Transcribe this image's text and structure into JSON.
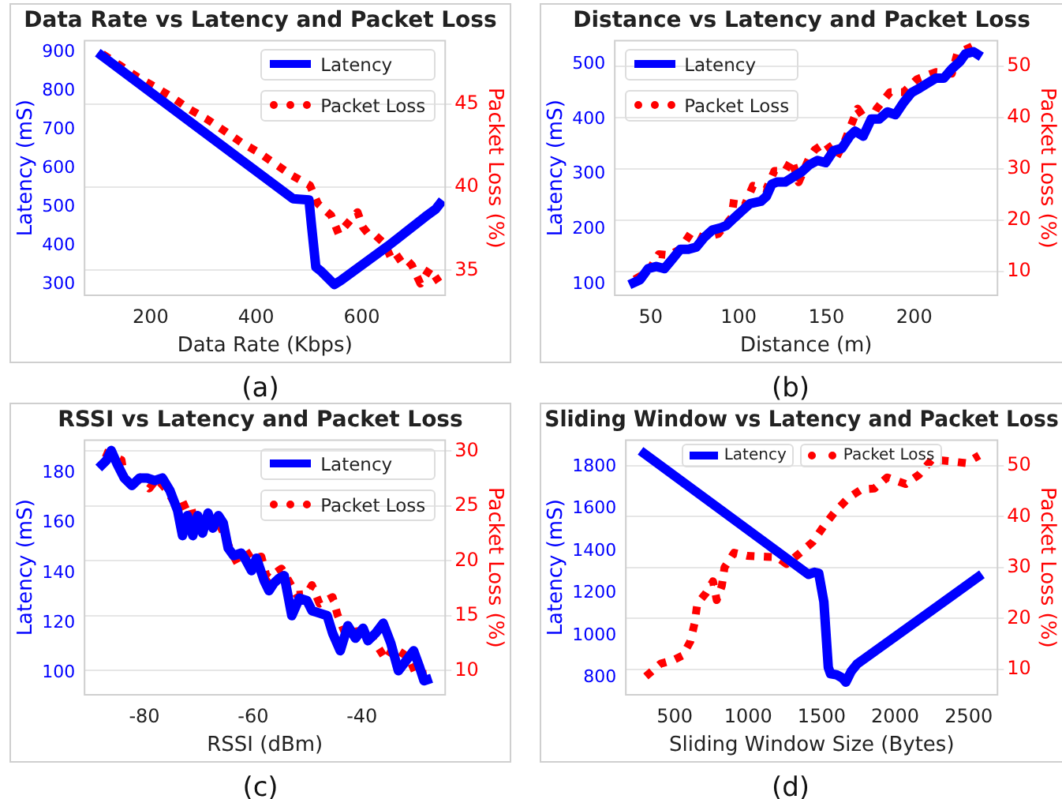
{
  "chart_data": [
    {
      "type": "line",
      "title": "Data Rate vs Latency and Packet Loss",
      "xlabel": "Data Rate (Kbps)",
      "ylabel": "Latency (mS)",
      "y2label": "Packet Loss (%)",
      "annotations": [
        "(a)"
      ],
      "xlim": [
        75,
        758
      ],
      "xticks": [
        200,
        400,
        600
      ],
      "ylim": [
        272,
        931
      ],
      "yticks": [
        300,
        400,
        500,
        600,
        700,
        800,
        900
      ],
      "y2lim": [
        33.5,
        48.8
      ],
      "y2ticks": [
        35,
        40,
        45
      ],
      "grid": "y",
      "legend": "top right",
      "series": [
        {
          "name": "Latency",
          "color": "#0000ff",
          "line_style": "solid",
          "x": [
            100,
            470,
            490,
            500,
            505,
            513,
            524,
            548,
            560,
            650,
            720,
            740,
            753
          ],
          "values": [
            900,
            522,
            520,
            519,
            450,
            345,
            333,
            300,
            310,
            400,
            475,
            495,
            518
          ]
        },
        {
          "name": "Packet Loss",
          "color": "#ff0000",
          "axis": "y2",
          "line_style": "dotted",
          "x": [
            109,
            143,
            176,
            210,
            241,
            273,
            306,
            339,
            371,
            404,
            436,
            468,
            502,
            517,
            542,
            556,
            578,
            592,
            602,
            612,
            626,
            643,
            659,
            677,
            695,
            711,
            729,
            746
          ],
          "values": [
            48.0,
            47.3,
            46.6,
            46.0,
            45.4,
            44.7,
            44.1,
            43.4,
            42.7,
            42.1,
            41.4,
            40.7,
            40.1,
            39.0,
            38.3,
            37.2,
            38.0,
            38.5,
            37.6,
            37.2,
            37.1,
            36.6,
            35.5,
            35.9,
            35.3,
            34.2,
            35.1,
            34.3
          ]
        }
      ]
    },
    {
      "type": "line",
      "title": "Distance vs Latency and Packet Loss",
      "xlabel": "Distance (m)",
      "ylabel": "Latency (mS)",
      "y2label": "Packet Loss (%)",
      "annotations": [
        "(b)"
      ],
      "xlim": [
        29.5,
        247.4
      ],
      "xticks": [
        50,
        100,
        150,
        200
      ],
      "ylim": [
        80.8,
        541.9
      ],
      "yticks": [
        100,
        200,
        300,
        400,
        500
      ],
      "y2lim": [
        5.4,
        54.9
      ],
      "y2ticks": [
        10,
        20,
        30,
        40,
        50
      ],
      "grid": "y",
      "legend": "top left",
      "series": [
        {
          "name": "Latency",
          "color": "#0000ff",
          "line_style": "solid",
          "x": [
            37.8,
            43.9,
            48.5,
            53.1,
            57.7,
            62.2,
            66.8,
            71.4,
            75.9,
            80.5,
            85.1,
            89.8,
            92.9,
            97.5,
            102,
            106.6,
            112.7,
            115.8,
            118.9,
            121.9,
            126.5,
            131.1,
            135.7,
            140.3,
            144.9,
            149.5,
            154.1,
            158.7,
            163.3,
            166.3,
            170.9,
            175.5,
            180.1,
            184.7,
            189.3,
            193.9,
            198.5,
            203,
            207.6,
            212.2,
            216.8,
            221.4,
            226,
            229.1,
            233.7,
            238.2
          ],
          "values": [
            100,
            109,
            129,
            133,
            129,
            146,
            164,
            164,
            168,
            186,
            199,
            203,
            207,
            221,
            234,
            247,
            251,
            260,
            282,
            286,
            286,
            295,
            304,
            317,
            325,
            321,
            343,
            347,
            369,
            378,
            369,
            400,
            400,
            413,
            408,
            430,
            448,
            456,
            465,
            474,
            474,
            491,
            504,
            518,
            522,
            513
          ]
        },
        {
          "name": "Packet Loss",
          "color": "#ff0000",
          "axis": "y2",
          "line_style": "dotted",
          "x": [
            40.8,
            48.5,
            54.6,
            60.7,
            66.8,
            73,
            79.1,
            88.3,
            95.9,
            97.4,
            103.6,
            108.2,
            115.8,
            120.4,
            126.5,
            130.2,
            134.2,
            140.3,
            143.4,
            149.5,
            155.6,
            160.2,
            167.8,
            174,
            178.6,
            186.2,
            193.9,
            201.5,
            212.2,
            221.4,
            224.5,
            235.2
          ],
          "values": [
            8.5,
            10.0,
            13.4,
            13.2,
            14.4,
            17.6,
            16.6,
            17.3,
            20.5,
            24.1,
            23.0,
            26.7,
            26.1,
            29.6,
            29.6,
            31.8,
            27.4,
            32.2,
            33.7,
            35.1,
            32.2,
            35.2,
            41.7,
            38.6,
            41.7,
            44.9,
            44.9,
            47.4,
            48.8,
            48.5,
            52.4,
            54.2
          ]
        }
      ]
    },
    {
      "type": "line",
      "title": "RSSI vs Latency and Packet Loss",
      "xlabel": "RSSI (dBm)",
      "ylabel": "Latency (mS)",
      "y2label": "Packet Loss (%)",
      "annotations": [
        "(c)"
      ],
      "xlim": [
        -91,
        -24.7
      ],
      "xticks": [
        -80,
        -60,
        -40
      ],
      "ylim": [
        91.4,
        193.1
      ],
      "yticks": [
        100,
        120,
        140,
        160,
        180
      ],
      "y2lim": [
        7.8,
        31
      ],
      "y2ticks": [
        10,
        15,
        20,
        25,
        30
      ],
      "grid": "y",
      "legend": "top right",
      "series": [
        {
          "name": "Latency",
          "color": "#0000ff",
          "line_style": "solid",
          "x": [
            -88.4,
            -87,
            -86.1,
            -85.1,
            -83.7,
            -82.3,
            -80.9,
            -79.5,
            -78.1,
            -76.7,
            -75.3,
            -73.9,
            -73,
            -72.1,
            -71.1,
            -70.2,
            -69.3,
            -68.3,
            -67.4,
            -66.4,
            -65.5,
            -64.6,
            -63.6,
            -62.2,
            -61.3,
            -60.3,
            -59.4,
            -58,
            -57.1,
            -56.2,
            -55.2,
            -54.3,
            -52.9,
            -51.5,
            -50.1,
            -49.2,
            -47.8,
            -46.4,
            -45.4,
            -44,
            -42.6,
            -41.2,
            -39.8,
            -38.9,
            -37.5,
            -36.1,
            -34.7,
            -33.3,
            -31.9,
            -30.5,
            -29.5,
            -28.6,
            -27.2
          ],
          "values": [
            182,
            185,
            189,
            184,
            178,
            175,
            178,
            178,
            177,
            178,
            173,
            165,
            155,
            163,
            155,
            163,
            156,
            164,
            158,
            163,
            160,
            150,
            147,
            148,
            145,
            141,
            146,
            137,
            133,
            136,
            138,
            139,
            123,
            130,
            129,
            125,
            124,
            123,
            116,
            109,
            119,
            114,
            118,
            113,
            116,
            120,
            112,
            101,
            105,
            109,
            103,
            97,
            98
          ]
        },
        {
          "name": "Packet Loss",
          "color": "#ff0000",
          "axis": "y2",
          "line_style": "dotted",
          "x": [
            -87.5,
            -84.2,
            -83.7,
            -81.4,
            -79.1,
            -77.7,
            -75.8,
            -73.9,
            -71.6,
            -70.7,
            -67.9,
            -66.9,
            -65.5,
            -64.1,
            -62.7,
            -61.8,
            -60.4,
            -58.5,
            -57.6,
            -57.1,
            -54.8,
            -54.3,
            -52,
            -50.1,
            -49.2,
            -47.8,
            -45.4,
            -44.5,
            -43.1,
            -40.8,
            -38.9,
            -37.5,
            -35.6,
            -34.2,
            -31.4,
            -30,
            -28.1
          ],
          "values": [
            29.9,
            29.2,
            27.5,
            27.8,
            26.6,
            27.5,
            26.4,
            24.8,
            25.3,
            23.4,
            22.9,
            24.0,
            22.6,
            20.9,
            19.6,
            21.3,
            20.2,
            20.4,
            18.7,
            18.5,
            19.3,
            18.9,
            16.9,
            17.0,
            17.8,
            16.1,
            16.7,
            15.1,
            13.4,
            13.6,
            13.6,
            12.5,
            11.0,
            12.1,
            11.2,
            9.6,
            9.7
          ]
        }
      ]
    },
    {
      "type": "line",
      "title": "Sliding Window vs Latency and Packet Loss",
      "xlabel": "Sliding Window Size (Bytes)",
      "ylabel": "Latency (mS)",
      "y2label": "Packet Loss (%)",
      "annotations": [
        "(d)"
      ],
      "xlim": [
        168,
        2696
      ],
      "xticks": [
        500,
        1000,
        1500,
        2000,
        2500
      ],
      "ylim": [
        720,
        1925
      ],
      "yticks": [
        800,
        1000,
        1200,
        1400,
        1600,
        1800
      ],
      "y2lim": [
        5,
        55
      ],
      "y2ticks": [
        10,
        20,
        30,
        40,
        50
      ],
      "grid": "y",
      "legend": "top",
      "series": [
        {
          "name": "Latency",
          "color": "#0000ff",
          "line_style": "solid",
          "x": [
            268,
            1410,
            1450,
            1480,
            1515,
            1545,
            1560,
            1600,
            1640,
            1665,
            1700,
            1740,
            2590
          ],
          "values": [
            1875,
            1290,
            1300,
            1295,
            1160,
            850,
            820,
            815,
            800,
            780,
            830,
            865,
            1290
          ]
        },
        {
          "name": "Packet Loss",
          "color": "#ff0000",
          "axis": "y2",
          "line_style": "dotted",
          "x": [
            304,
            404,
            489,
            554,
            607,
            636,
            654,
            714,
            761,
            786,
            821,
            839,
            904,
            993,
            1125,
            1196,
            1261,
            1346,
            1439,
            1511,
            1589,
            1679,
            1768,
            1857,
            1946,
            2071,
            2161,
            2250,
            2368,
            2482,
            2571
          ],
          "values": [
            8.6,
            11.1,
            11.8,
            12.7,
            15.5,
            19.1,
            22.9,
            25.0,
            27.3,
            23.6,
            26.4,
            30.0,
            32.9,
            32.3,
            32.1,
            32.0,
            30.7,
            32.7,
            35.0,
            38.0,
            40.9,
            43.6,
            45.3,
            45.5,
            47.7,
            46.4,
            48.2,
            51.2,
            50.9,
            50.5,
            52.0
          ]
        }
      ]
    }
  ]
}
